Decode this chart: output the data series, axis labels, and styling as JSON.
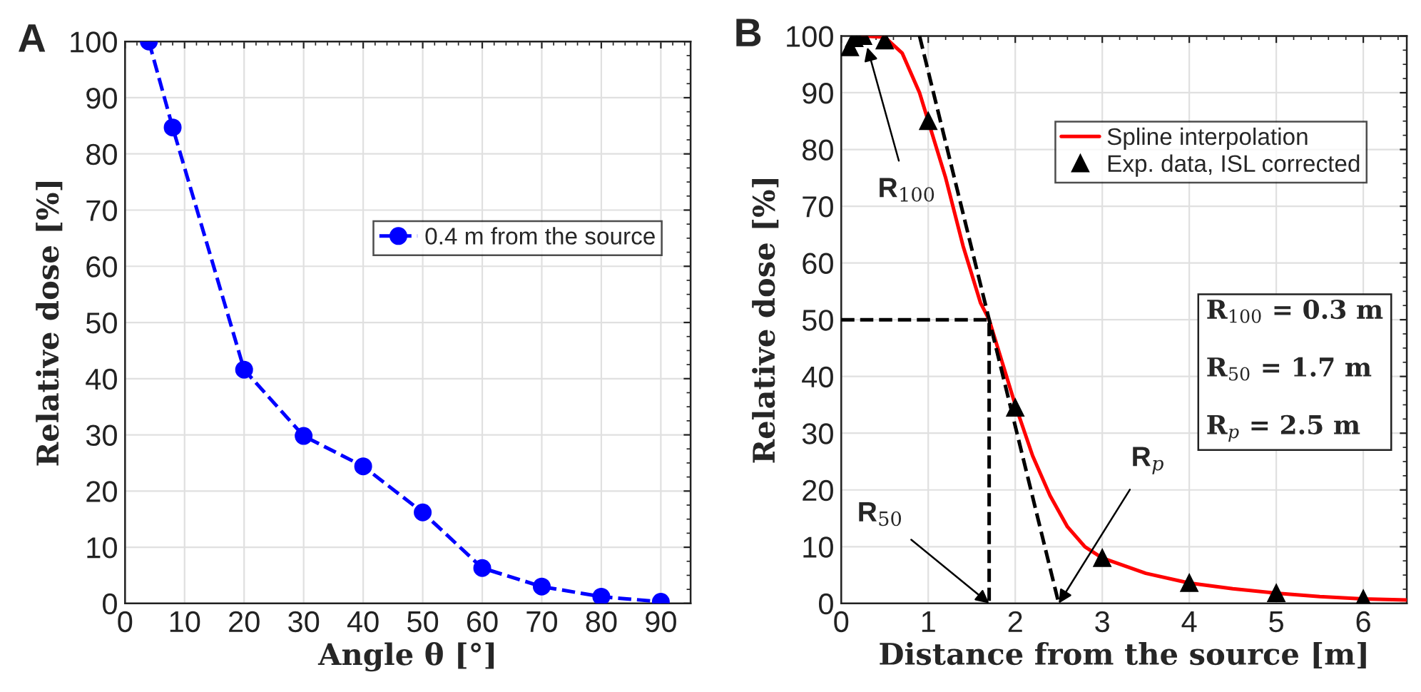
{
  "chart_data": [
    {
      "type": "line",
      "title": "A",
      "xlabel": "Angle θ [°]",
      "ylabel": "Relative dose [%]",
      "xlim": [
        0,
        95
      ],
      "xticks": [
        0,
        10,
        20,
        30,
        40,
        50,
        60,
        70,
        80,
        90
      ],
      "ylim": [
        0,
        100
      ],
      "yticks": [
        0,
        10,
        20,
        30,
        40,
        50,
        60,
        70,
        80,
        90,
        100
      ],
      "grid": true,
      "legend": "right",
      "marker": "circle",
      "line_style": "dashed",
      "x": [
        4,
        8,
        20,
        30,
        40,
        50,
        60,
        70,
        80,
        90
      ],
      "series": [
        {
          "name": "0.4 m from the source",
          "color": "#0000ff",
          "values": [
            100,
            84.7,
            41.6,
            29.8,
            24.4,
            16.2,
            6.3,
            3.0,
            1.2,
            0.3
          ]
        }
      ]
    },
    {
      "type": "line",
      "title": "B",
      "xlabel": "Distance from the source [m]",
      "ylabel": "Relative dose [%]",
      "xlim": [
        0,
        6.5
      ],
      "xticks": [
        0,
        1,
        2,
        3,
        4,
        5,
        6
      ],
      "ylim": [
        0,
        100
      ],
      "yticks": [
        0,
        10,
        20,
        30,
        40,
        50,
        60,
        70,
        80,
        90,
        100
      ],
      "grid": true,
      "legend": "top right",
      "series": [
        {
          "name": "Spline interpolation",
          "type": "line",
          "color": "#ff0000",
          "marker": "none",
          "line_style": "solid",
          "x": [
            0.25,
            0.5,
            0.7,
            0.9,
            1,
            1.2,
            1.4,
            1.6,
            1.7,
            1.8,
            2,
            2.2,
            2.4,
            2.6,
            2.8,
            3,
            3.5,
            4,
            4.5,
            5,
            5.5,
            6,
            6.5
          ],
          "values": [
            100,
            99.8,
            97,
            90,
            85,
            75,
            63,
            53,
            50,
            45,
            35,
            26,
            19,
            13.5,
            10,
            8,
            5.3,
            3.6,
            2.6,
            1.8,
            1.2,
            0.8,
            0.6
          ]
        },
        {
          "name": "Exp. data, ISL corrected",
          "type": "scatter",
          "color": "#000000",
          "marker": "triangle",
          "x": [
            0.1,
            0.15,
            0.25,
            0.5,
            1,
            2,
            3,
            4,
            5,
            6
          ],
          "values": [
            98,
            99.6,
            100,
            99.2,
            85,
            34.5,
            8,
            3.6,
            1.8,
            0.8
          ]
        },
        {
          "type": "line",
          "color": "#000000",
          "marker": "none",
          "line_style": "dashed",
          "x": [
            0.9,
            2.5
          ],
          "values": [
            100,
            0
          ]
        },
        {
          "type": "line",
          "color": "#000000",
          "marker": "none",
          "line_style": "dashed",
          "x": [
            0,
            1.7,
            1.7
          ],
          "values": [
            50,
            50,
            0
          ]
        }
      ],
      "annotations": [
        {
          "text": "R$_{100}$",
          "x": 0.3,
          "y": 98
        },
        {
          "text": "R$_{50}$",
          "x": 1.7,
          "y": 0
        },
        {
          "text": "R$_{p}$",
          "x": 2.5,
          "y": 0
        },
        "R$_{100}$ = 0.3 m",
        "R$_{50}$ = 1.7 m",
        "R$_{p}$ = 2.5 m"
      ]
    }
  ]
}
